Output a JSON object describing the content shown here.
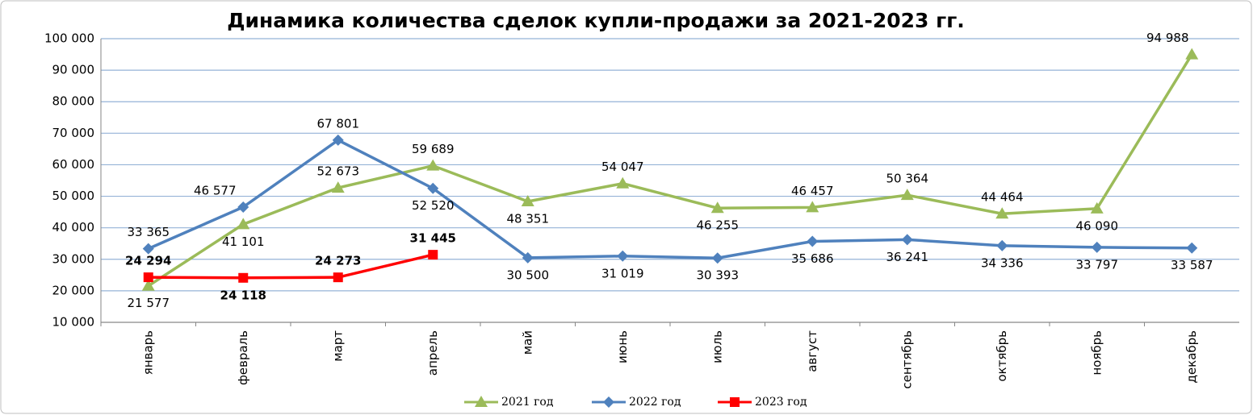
{
  "chart_data": {
    "type": "line",
    "title": "Динамика количества сделок купли-продажи за 2021-2023 гг.",
    "categories": [
      "январь",
      "февраль",
      "март",
      "апрель",
      "май",
      "июнь",
      "июль",
      "август",
      "сентябрь",
      "октябрь",
      "ноябрь",
      "декабрь"
    ],
    "series": [
      {
        "name": "2021 год",
        "color": "#9bbb59",
        "marker": "triangle",
        "values": [
          21577,
          41101,
          52673,
          59689,
          48351,
          54047,
          46255,
          46457,
          50364,
          44464,
          46090,
          94988
        ],
        "value_labels": [
          "21 577",
          "41 101",
          "52 673",
          "59 689",
          "48 351",
          "54 047",
          "46 255",
          "46 457",
          "50 364",
          "44 464",
          "46 090",
          "94 988"
        ]
      },
      {
        "name": "2022 год",
        "color": "#4f81bd",
        "marker": "diamond",
        "values": [
          33365,
          46577,
          67801,
          52520,
          30500,
          31019,
          30393,
          35686,
          36241,
          34336,
          33797,
          33587
        ],
        "value_labels": [
          "33 365",
          "46 577",
          "67 801",
          "52 520",
          "30 500",
          "31 019",
          "30 393",
          "35 686",
          "36 241",
          "34 336",
          "33 797",
          "33 587"
        ]
      },
      {
        "name": "2023 год",
        "color": "#ff0000",
        "marker": "square",
        "bold_labels": true,
        "values": [
          24294,
          24118,
          24273,
          31445,
          null,
          null,
          null,
          null,
          null,
          null,
          null,
          null
        ],
        "value_labels": [
          "24 294",
          "24 118",
          "24 273",
          "31 445",
          null,
          null,
          null,
          null,
          null,
          null,
          null,
          null
        ]
      }
    ],
    "ylim": [
      10000,
      100000
    ],
    "yticks": [
      {
        "value": 10000,
        "label": "10 000"
      },
      {
        "value": 20000,
        "label": "20 000"
      },
      {
        "value": 30000,
        "label": "30 000"
      },
      {
        "value": 40000,
        "label": "40 000"
      },
      {
        "value": 50000,
        "label": "50 000"
      },
      {
        "value": 60000,
        "label": "60 000"
      },
      {
        "value": 70000,
        "label": "70 000"
      },
      {
        "value": 80000,
        "label": "80 000"
      },
      {
        "value": 90000,
        "label": "90 000"
      },
      {
        "value": 100000,
        "label": "100 000"
      }
    ],
    "grid": true,
    "legend": "bottom"
  }
}
